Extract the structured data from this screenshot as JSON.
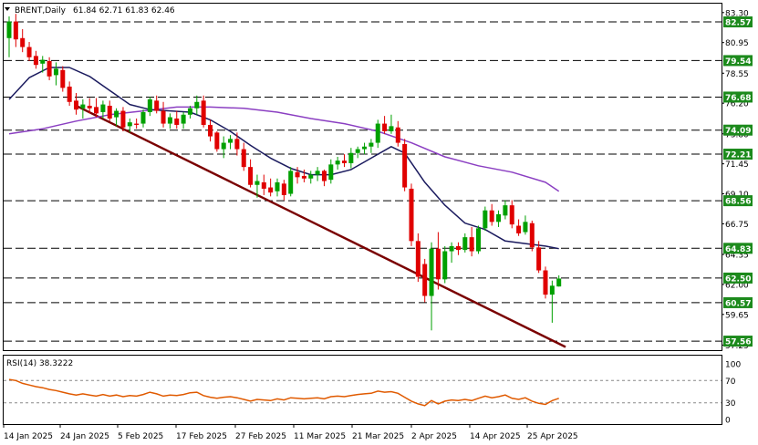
{
  "header": {
    "symbol": "BRENT,Daily",
    "ohlc": "61.84 62.71 61.83 62.46",
    "menu_icon": "triangle-down-icon"
  },
  "rsi_panel": {
    "label": "RSI(14) 38.3222",
    "levels": [
      70,
      30
    ],
    "ticks": [
      "100",
      "70",
      "30",
      "0"
    ]
  },
  "colors": {
    "bull": "#00a000",
    "bear": "#e00000",
    "sma_fast": "#1a1a5e",
    "sma_slow": "#8b3fc2",
    "trendline": "#7a0000",
    "rsi": "#e05a00",
    "level_label_bg": "#1c8a1c",
    "grid": "#000000"
  },
  "chart_data": [
    {
      "type": "candlestick",
      "title": "BRENT,Daily",
      "y_ticks": [
        "83.30",
        "80.95",
        "78.55",
        "76.20",
        "73.80",
        "71.45",
        "69.10",
        "66.75",
        "64.35",
        "62.00",
        "59.65",
        "57.25"
      ],
      "x_ticks": [
        "14 Jan 2025",
        "24 Jan 2025",
        "5 Feb 2025",
        "17 Feb 2025",
        "27 Feb 2025",
        "11 Mar 2025",
        "21 Mar 2025",
        "2 Apr 2025",
        "14 Apr 2025",
        "25 Apr 2025"
      ],
      "ylim": [
        56.85,
        84.0
      ],
      "horizontal_levels": [
        "82.57",
        "79.54",
        "76.68",
        "74.09",
        "72.21",
        "68.56",
        "64.83",
        "62.50",
        "60.57",
        "57.56"
      ],
      "candles": [
        {
          "o": 81.3,
          "h": 83.0,
          "l": 79.8,
          "c": 82.6
        },
        {
          "o": 82.6,
          "h": 83.2,
          "l": 80.6,
          "c": 81.2
        },
        {
          "o": 81.3,
          "h": 82.0,
          "l": 80.2,
          "c": 80.6
        },
        {
          "o": 80.6,
          "h": 81.0,
          "l": 79.5,
          "c": 79.8
        },
        {
          "o": 79.9,
          "h": 80.3,
          "l": 78.9,
          "c": 79.2
        },
        {
          "o": 79.3,
          "h": 79.9,
          "l": 78.6,
          "c": 79.6
        },
        {
          "o": 79.5,
          "h": 79.8,
          "l": 78.0,
          "c": 78.3
        },
        {
          "o": 78.4,
          "h": 79.4,
          "l": 77.6,
          "c": 78.9
        },
        {
          "o": 78.8,
          "h": 79.1,
          "l": 77.1,
          "c": 77.4
        },
        {
          "o": 77.5,
          "h": 77.9,
          "l": 76.0,
          "c": 76.3
        },
        {
          "o": 76.4,
          "h": 77.0,
          "l": 75.3,
          "c": 75.7
        },
        {
          "o": 75.8,
          "h": 76.5,
          "l": 75.0,
          "c": 76.1
        },
        {
          "o": 76.0,
          "h": 76.6,
          "l": 75.4,
          "c": 75.8
        },
        {
          "o": 75.9,
          "h": 76.6,
          "l": 75.1,
          "c": 75.4
        },
        {
          "o": 75.5,
          "h": 76.4,
          "l": 75.0,
          "c": 76.1
        },
        {
          "o": 76.0,
          "h": 76.4,
          "l": 74.8,
          "c": 75.0
        },
        {
          "o": 75.1,
          "h": 75.8,
          "l": 74.4,
          "c": 75.6
        },
        {
          "o": 75.6,
          "h": 75.9,
          "l": 74.0,
          "c": 74.3
        },
        {
          "o": 74.4,
          "h": 75.0,
          "l": 73.9,
          "c": 74.7
        },
        {
          "o": 74.6,
          "h": 75.0,
          "l": 74.2,
          "c": 74.5
        },
        {
          "o": 74.6,
          "h": 75.7,
          "l": 74.3,
          "c": 75.5
        },
        {
          "o": 75.5,
          "h": 76.7,
          "l": 75.2,
          "c": 76.5
        },
        {
          "o": 76.4,
          "h": 76.8,
          "l": 75.4,
          "c": 75.6
        },
        {
          "o": 75.6,
          "h": 76.3,
          "l": 74.3,
          "c": 74.6
        },
        {
          "o": 74.6,
          "h": 75.4,
          "l": 74.2,
          "c": 75.1
        },
        {
          "o": 75.0,
          "h": 75.6,
          "l": 74.2,
          "c": 74.5
        },
        {
          "o": 74.6,
          "h": 75.5,
          "l": 74.2,
          "c": 75.3
        },
        {
          "o": 75.3,
          "h": 76.0,
          "l": 75.0,
          "c": 75.8
        },
        {
          "o": 75.8,
          "h": 76.8,
          "l": 75.3,
          "c": 76.3
        },
        {
          "o": 76.4,
          "h": 76.8,
          "l": 74.3,
          "c": 74.5
        },
        {
          "o": 74.5,
          "h": 74.9,
          "l": 73.2,
          "c": 73.6
        },
        {
          "o": 73.9,
          "h": 74.0,
          "l": 72.4,
          "c": 72.6
        },
        {
          "o": 72.6,
          "h": 73.6,
          "l": 71.9,
          "c": 73.1
        },
        {
          "o": 73.1,
          "h": 73.7,
          "l": 72.6,
          "c": 73.4
        },
        {
          "o": 73.4,
          "h": 73.9,
          "l": 72.1,
          "c": 72.6
        },
        {
          "o": 72.6,
          "h": 73.1,
          "l": 70.9,
          "c": 71.2
        },
        {
          "o": 71.2,
          "h": 71.8,
          "l": 69.6,
          "c": 69.8
        },
        {
          "o": 69.8,
          "h": 70.6,
          "l": 68.8,
          "c": 70.1
        },
        {
          "o": 70.0,
          "h": 70.6,
          "l": 69.0,
          "c": 69.5
        },
        {
          "o": 69.6,
          "h": 70.3,
          "l": 68.9,
          "c": 69.2
        },
        {
          "o": 69.3,
          "h": 70.3,
          "l": 68.9,
          "c": 70.0
        },
        {
          "o": 69.9,
          "h": 70.2,
          "l": 68.6,
          "c": 69.0
        },
        {
          "o": 69.1,
          "h": 71.2,
          "l": 68.9,
          "c": 70.9
        },
        {
          "o": 70.8,
          "h": 71.2,
          "l": 69.9,
          "c": 70.4
        },
        {
          "o": 70.5,
          "h": 71.0,
          "l": 70.0,
          "c": 70.3
        },
        {
          "o": 70.3,
          "h": 70.9,
          "l": 69.9,
          "c": 70.6
        },
        {
          "o": 70.6,
          "h": 71.2,
          "l": 70.1,
          "c": 70.9
        },
        {
          "o": 70.9,
          "h": 71.0,
          "l": 69.7,
          "c": 70.1
        },
        {
          "o": 70.2,
          "h": 71.8,
          "l": 69.9,
          "c": 71.4
        },
        {
          "o": 71.4,
          "h": 72.0,
          "l": 71.0,
          "c": 71.7
        },
        {
          "o": 71.7,
          "h": 72.2,
          "l": 71.2,
          "c": 71.5
        },
        {
          "o": 71.5,
          "h": 72.7,
          "l": 71.1,
          "c": 72.3
        },
        {
          "o": 72.3,
          "h": 72.8,
          "l": 71.9,
          "c": 72.6
        },
        {
          "o": 72.6,
          "h": 73.1,
          "l": 72.2,
          "c": 72.8
        },
        {
          "o": 72.8,
          "h": 73.4,
          "l": 72.3,
          "c": 73.1
        },
        {
          "o": 73.1,
          "h": 74.9,
          "l": 72.7,
          "c": 74.6
        },
        {
          "o": 74.6,
          "h": 75.2,
          "l": 73.8,
          "c": 74.0
        },
        {
          "o": 74.0,
          "h": 75.3,
          "l": 73.8,
          "c": 74.4
        },
        {
          "o": 74.3,
          "h": 74.8,
          "l": 72.8,
          "c": 73.1
        },
        {
          "o": 73.0,
          "h": 73.4,
          "l": 69.3,
          "c": 69.6
        },
        {
          "o": 69.5,
          "h": 69.9,
          "l": 65.0,
          "c": 65.4
        },
        {
          "o": 65.4,
          "h": 66.0,
          "l": 62.2,
          "c": 62.6
        },
        {
          "o": 63.6,
          "h": 64.0,
          "l": 60.6,
          "c": 61.1
        },
        {
          "o": 61.1,
          "h": 65.3,
          "l": 58.4,
          "c": 64.8
        },
        {
          "o": 64.8,
          "h": 66.1,
          "l": 61.6,
          "c": 62.4
        },
        {
          "o": 62.4,
          "h": 65.0,
          "l": 62.1,
          "c": 64.6
        },
        {
          "o": 64.6,
          "h": 65.3,
          "l": 63.7,
          "c": 65.0
        },
        {
          "o": 65.0,
          "h": 65.3,
          "l": 64.3,
          "c": 64.7
        },
        {
          "o": 64.7,
          "h": 66.0,
          "l": 64.5,
          "c": 65.7
        },
        {
          "o": 65.7,
          "h": 66.5,
          "l": 64.2,
          "c": 64.6
        },
        {
          "o": 64.6,
          "h": 66.6,
          "l": 64.4,
          "c": 66.4
        },
        {
          "o": 66.4,
          "h": 68.1,
          "l": 66.2,
          "c": 67.8
        },
        {
          "o": 67.8,
          "h": 68.3,
          "l": 66.6,
          "c": 66.9
        },
        {
          "o": 66.9,
          "h": 67.8,
          "l": 66.5,
          "c": 67.5
        },
        {
          "o": 67.4,
          "h": 68.6,
          "l": 67.1,
          "c": 68.2
        },
        {
          "o": 68.2,
          "h": 68.6,
          "l": 66.4,
          "c": 66.7
        },
        {
          "o": 66.6,
          "h": 67.1,
          "l": 65.8,
          "c": 66.0
        },
        {
          "o": 66.1,
          "h": 67.4,
          "l": 65.9,
          "c": 66.9
        },
        {
          "o": 66.8,
          "h": 67.0,
          "l": 64.6,
          "c": 64.9
        },
        {
          "o": 64.9,
          "h": 65.4,
          "l": 62.9,
          "c": 63.1
        },
        {
          "o": 63.1,
          "h": 63.4,
          "l": 60.9,
          "c": 61.2
        },
        {
          "o": 61.2,
          "h": 62.3,
          "l": 59.0,
          "c": 61.9
        },
        {
          "o": 61.84,
          "h": 62.71,
          "l": 61.83,
          "c": 62.46
        }
      ],
      "sma_fast": [
        {
          "i": 0,
          "v": 76.5
        },
        {
          "i": 3,
          "v": 78.2
        },
        {
          "i": 6,
          "v": 79.0
        },
        {
          "i": 9,
          "v": 79.0
        },
        {
          "i": 12,
          "v": 78.3
        },
        {
          "i": 15,
          "v": 77.2
        },
        {
          "i": 18,
          "v": 76.1
        },
        {
          "i": 21,
          "v": 75.7
        },
        {
          "i": 24,
          "v": 75.6
        },
        {
          "i": 27,
          "v": 75.5
        },
        {
          "i": 30,
          "v": 74.9
        },
        {
          "i": 33,
          "v": 74.0
        },
        {
          "i": 36,
          "v": 72.9
        },
        {
          "i": 39,
          "v": 71.9
        },
        {
          "i": 42,
          "v": 71.1
        },
        {
          "i": 45,
          "v": 70.6
        },
        {
          "i": 48,
          "v": 70.6
        },
        {
          "i": 51,
          "v": 71.0
        },
        {
          "i": 54,
          "v": 71.9
        },
        {
          "i": 57,
          "v": 72.8
        },
        {
          "i": 59,
          "v": 72.3
        },
        {
          "i": 62,
          "v": 70.0
        },
        {
          "i": 65,
          "v": 68.2
        },
        {
          "i": 68,
          "v": 66.8
        },
        {
          "i": 71,
          "v": 66.3
        },
        {
          "i": 74,
          "v": 65.4
        },
        {
          "i": 77,
          "v": 65.2
        },
        {
          "i": 80,
          "v": 65.0
        },
        {
          "i": 82,
          "v": 64.8
        }
      ],
      "sma_slow": [
        {
          "i": 0,
          "v": 73.8
        },
        {
          "i": 5,
          "v": 74.2
        },
        {
          "i": 10,
          "v": 74.8
        },
        {
          "i": 15,
          "v": 75.3
        },
        {
          "i": 20,
          "v": 75.6
        },
        {
          "i": 25,
          "v": 75.9
        },
        {
          "i": 30,
          "v": 75.9
        },
        {
          "i": 35,
          "v": 75.8
        },
        {
          "i": 40,
          "v": 75.5
        },
        {
          "i": 45,
          "v": 75.0
        },
        {
          "i": 50,
          "v": 74.6
        },
        {
          "i": 55,
          "v": 74.0
        },
        {
          "i": 60,
          "v": 73.1
        },
        {
          "i": 65,
          "v": 72.0
        },
        {
          "i": 70,
          "v": 71.3
        },
        {
          "i": 75,
          "v": 70.8
        },
        {
          "i": 80,
          "v": 70.0
        },
        {
          "i": 82,
          "v": 69.3
        }
      ],
      "trendline": {
        "from": {
          "i": 10,
          "v": 76.0
        },
        "to": {
          "i": 83,
          "v": 57.1
        }
      }
    },
    {
      "type": "line",
      "title": "RSI(14) 38.3222",
      "ylim": [
        0,
        100
      ],
      "values": [
        72,
        70,
        65,
        62,
        59,
        57,
        54,
        52,
        49,
        46,
        44,
        46,
        44,
        42,
        45,
        42,
        44,
        41,
        43,
        42,
        45,
        49,
        46,
        42,
        44,
        43,
        45,
        48,
        49,
        43,
        40,
        38,
        40,
        41,
        39,
        36,
        33,
        36,
        35,
        34,
        37,
        35,
        39,
        38,
        37,
        38,
        39,
        37,
        41,
        42,
        41,
        43,
        45,
        46,
        47,
        51,
        49,
        50,
        47,
        40,
        33,
        28,
        25,
        34,
        28,
        33,
        35,
        34,
        36,
        34,
        38,
        42,
        39,
        41,
        44,
        38,
        36,
        39,
        33,
        29,
        27,
        34,
        38
      ]
    }
  ]
}
